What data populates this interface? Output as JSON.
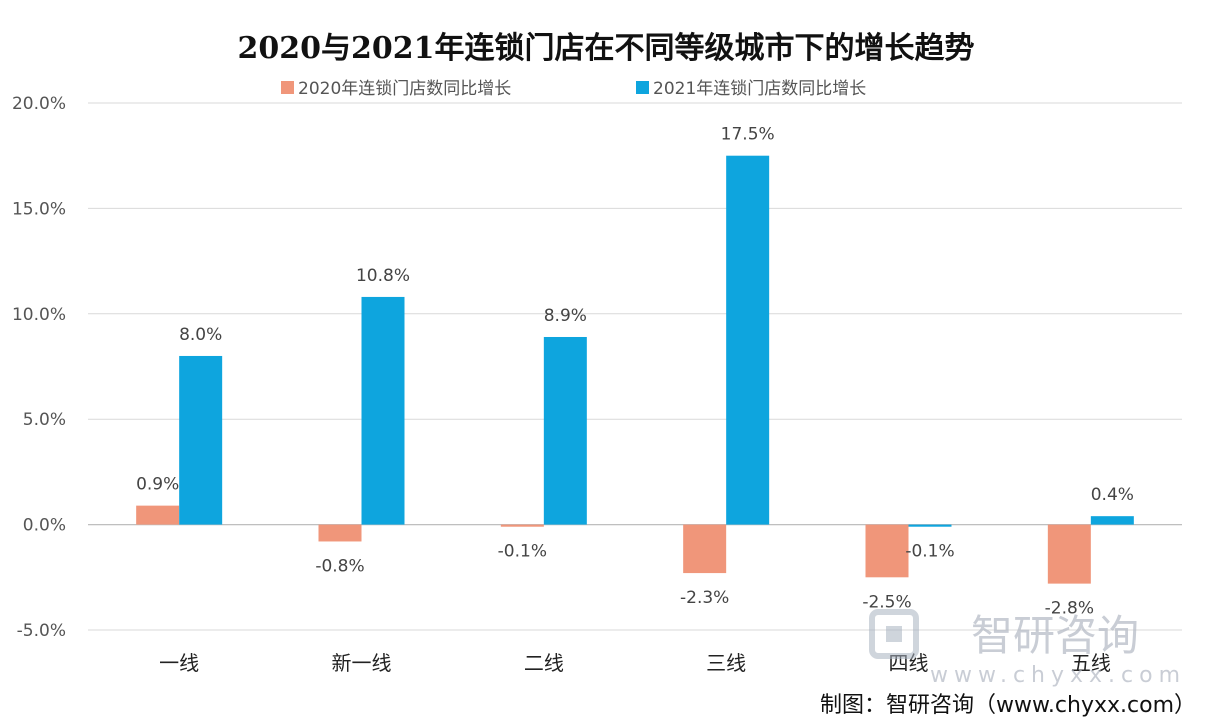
{
  "chart_data": {
    "type": "bar",
    "title": "2020与2021年连锁门店在不同等级城市下的增长趋势",
    "categories": [
      "一线",
      "新一线",
      "二线",
      "三线",
      "四线",
      "五线"
    ],
    "series": [
      {
        "name": "2020年连锁门店数同比增长",
        "values": [
          0.9,
          -0.8,
          -0.1,
          -2.3,
          -2.5,
          -2.8
        ],
        "labels": [
          "0.9%",
          "-0.8%",
          "-0.1%",
          "-2.3%",
          "-2.5%",
          "-2.8%"
        ]
      },
      {
        "name": "2021年连锁门店数同比增长",
        "values": [
          8.0,
          10.8,
          8.9,
          17.5,
          -0.1,
          0.4
        ],
        "labels": [
          "8.0%",
          "10.8%",
          "8.9%",
          "17.5%",
          "-0.1%",
          "0.4%"
        ]
      }
    ],
    "ylim": [
      -5,
      20
    ],
    "yticks": [
      -5,
      0,
      5,
      10,
      15,
      20
    ],
    "ytick_labels": [
      "-5.0%",
      "0.0%",
      "5.0%",
      "10.0%",
      "15.0%",
      "20.0%"
    ],
    "grid": true,
    "legend_position": "top-center",
    "colors": [
      "#f0967a",
      "#0ea5de"
    ]
  },
  "watermark": {
    "brand": "智研咨询",
    "site": "www.chyxx.com"
  },
  "source": "制图：智研咨询（www.chyxx.com）"
}
